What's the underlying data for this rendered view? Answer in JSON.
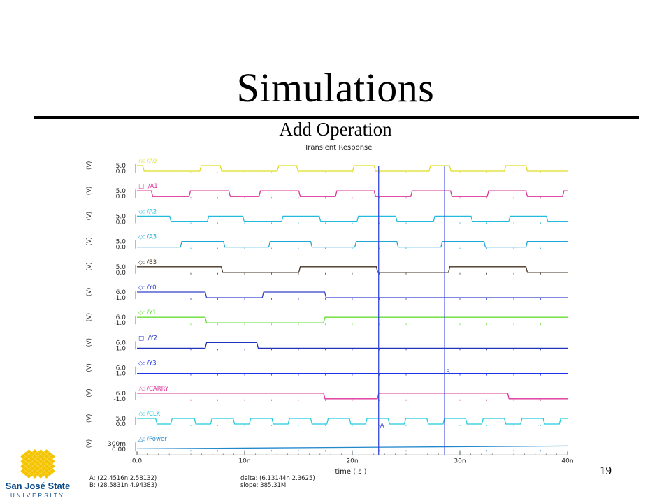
{
  "slide": {
    "title": "Simulations",
    "subtitle": "Add Operation",
    "page_number": "19",
    "logo": {
      "name": "San José State",
      "sub": "UNIVERSITY",
      "colors": {
        "gold": "#f5c400",
        "blue": "#0a4a8a"
      }
    }
  },
  "chart_data": {
    "type": "line",
    "title": "Transient Response",
    "xlabel": "time ( s )",
    "x_ticks": [
      "0.0",
      "10n",
      "20n",
      "30n",
      "40n"
    ],
    "xlim_ns": [
      0,
      40
    ],
    "cursors": [
      {
        "label": "A",
        "x_ns": 22.45,
        "color": "#3344dd"
      },
      {
        "label": "B",
        "x_ns": 28.58,
        "color": "#3344dd"
      }
    ],
    "readout": {
      "a": "A: (22.4516n 2.58132)",
      "b": "B: (28.5831n 4.94383)",
      "delta": "delta: (6.13144n 2.3625)",
      "slope": "slope: 385.31M"
    },
    "series": [
      {
        "name": "/A0",
        "marker": "◇",
        "color": "#dddd22",
        "unit": "(V)",
        "y_top": "5.0",
        "y_bot": "0.0",
        "transitions_ns": [
          0,
          0.6,
          5.9,
          7.8,
          13.1,
          14.9,
          20.1,
          22.1,
          27.2,
          29.1,
          34.2,
          36.2,
          40
        ]
      },
      {
        "name": "/A1",
        "marker": "□",
        "color": "#dd3399",
        "unit": "(V)",
        "y_top": "5.0",
        "y_bot": "0.0",
        "transitions_ns": [
          0,
          1.4,
          4.9,
          8.6,
          11.4,
          15.1,
          18.5,
          22.1,
          25.5,
          29.2,
          32.6,
          36.2,
          39.6
        ]
      },
      {
        "name": "/A2",
        "marker": "◇",
        "color": "#22bbdd",
        "unit": "(V)",
        "y_top": "5.0",
        "y_bot": "0.0",
        "transitions_ns": [
          0,
          3.1,
          6.6,
          9.9,
          13.5,
          17.0,
          20.5,
          24.1,
          27.6,
          31.1,
          34.6,
          38.1,
          40
        ]
      },
      {
        "name": "/A3",
        "marker": "◇",
        "color": "#22a6d6",
        "unit": "(V)",
        "y_top": "5.0",
        "y_bot": "0.0",
        "transitions_ns": [
          4.1,
          8.1,
          12.3,
          16.2,
          20.3,
          24.2,
          28.3,
          32.3,
          36.2,
          40
        ]
      },
      {
        "name": "/B3",
        "marker": "◇",
        "color": "#443322",
        "unit": "(V)",
        "y_top": "5.0",
        "y_bot": "0.0",
        "transitions_ns": [
          0,
          7.9,
          15.1,
          22.3,
          29.0,
          36.2,
          40
        ]
      },
      {
        "name": "/Y0",
        "marker": "◇",
        "color": "#3344cc",
        "unit": "(V)",
        "y_top": "6.0",
        "y_bot": "-1.0",
        "transitions_ns": [
          0,
          6.4,
          11.7,
          17.5,
          40
        ]
      },
      {
        "name": "/Y1",
        "marker": "◇",
        "color": "#66dd33",
        "unit": "(V)",
        "y_top": "6.0",
        "y_bot": "-1.0",
        "transitions_ns": [
          0,
          6.4,
          17.4,
          40
        ]
      },
      {
        "name": "/Y2",
        "marker": "□",
        "color": "#2233bb",
        "unit": "(V)",
        "y_top": "6.0",
        "y_bot": "-1.0",
        "transitions_ns": [
          6.4,
          11.2,
          40
        ]
      },
      {
        "name": "/Y3",
        "marker": "◇",
        "color": "#2233ee",
        "unit": "(V)",
        "y_top": "6.0",
        "y_bot": "-1.0",
        "transitions_ns": [
          40
        ]
      },
      {
        "name": "/CARRY",
        "marker": "△",
        "color": "#dd3399",
        "unit": "(V)",
        "y_top": "6.0",
        "y_bot": "-1.0",
        "transitions_ns": [
          0,
          17.4,
          22.4,
          34.5,
          40
        ]
      },
      {
        "name": "/CLK",
        "marker": "◇",
        "color": "#22ccdd",
        "unit": "(V)",
        "y_top": "5.0",
        "y_bot": "0.0",
        "transitions_ns": [
          0,
          1.8,
          3.2,
          5.4,
          6.9,
          9.0,
          10.5,
          12.6,
          14.1,
          16.2,
          17.7,
          19.8,
          21.3,
          23.4,
          24.9,
          27.0,
          28.5,
          30.6,
          32.1,
          34.2,
          35.7,
          37.8,
          39.3,
          40
        ]
      },
      {
        "name": "/Power",
        "marker": "△",
        "color": "#2288cc",
        "unit": "(V)",
        "y_top": "300m",
        "y_bot": "0.00",
        "ramp": [
          0.05,
          0.3
        ]
      }
    ]
  }
}
